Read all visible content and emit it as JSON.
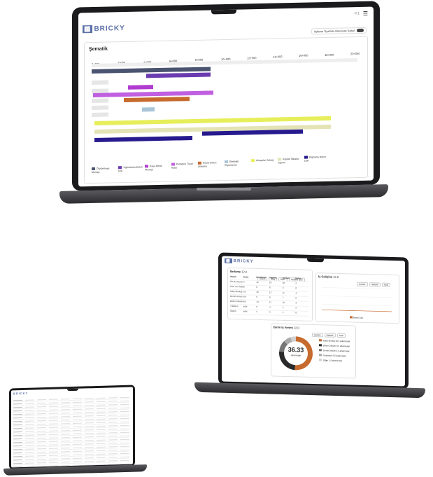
{
  "laptop_large": {
    "header": {
      "logo_text": "BRICKY",
      "page_indicator": "P1",
      "toggle_label": "Aylama Tiyatrolu Mevzuatı Kabel"
    },
    "schematic": {
      "title": "Şematik",
      "ticks": [
        "0+000",
        "2+000",
        "4+000",
        "6+000",
        "8+000",
        "10+000",
        "12+000",
        "14+000",
        "16+000",
        "18+000",
        "20+000"
      ],
      "legend": [
        {
          "label": "Ölçülemeye Montajı",
          "color": "#4a5470"
        },
        {
          "label": "Yığmalama Beton Dök",
          "color": "#6b3bb0"
        },
        {
          "label": "Kaya Beton Montajı",
          "color": "#b03bd0"
        },
        {
          "label": "Prefabrik Tünel Kalıp",
          "color": "#c060e0"
        },
        {
          "label": "Kesici Beton Dökümü",
          "color": "#c76a2e"
        },
        {
          "label": "Elektrikli Ölçümleme",
          "color": "#a9c6d8"
        },
        {
          "label": "Ahşaplar Sahaşı",
          "color": "#e6ee5a"
        },
        {
          "label": "Asfalte Tabaka Yapımı",
          "color": "#e3e3b6"
        },
        {
          "label": "Kaplama Beton Dök",
          "color": "#261a8e"
        }
      ]
    }
  },
  "laptop_mid": {
    "header": {
      "logo_text": "BRICKY"
    },
    "table_card": {
      "title": "İlerleme",
      "date": "12.0",
      "chips": [
        "Seçim",
        "Bitiş",
        "Birim",
        "Haftalık Gün"
      ],
      "columns": [
        "İmalat",
        "Birim",
        "Planlanan",
        "Yapılan",
        "Gerçek",
        "Kalan"
      ],
      "rows": [
        [
          "Filt.tas Kazısı",
          "m",
          "12",
          "10",
          "10",
          "2"
        ],
        [
          "Kazı Yeri Tabaka",
          "m",
          "8",
          "8",
          "9",
          "0"
        ],
        [
          "Kalıp Montajı",
          "m2",
          "16",
          "12",
          "11",
          "4"
        ],
        [
          "Demir Donatı",
          "ton",
          "9",
          "9",
          "7",
          "0"
        ],
        [
          "Beton Dökümü",
          "m3",
          "14",
          "11",
          "10",
          "3"
        ],
        [
          "Yükleme",
          "adet",
          "6",
          "4",
          "5",
          "2"
        ],
        [
          "Ölçüm",
          "adet",
          "5",
          "5",
          "4",
          "0"
        ]
      ]
    },
    "line_card": {
      "title": "İş Gelişimi",
      "date": "12.0",
      "chips": [
        "Günlük",
        "Haftalık",
        "Aylık"
      ],
      "legend_label": "Beton Dök"
    },
    "donut_card": {
      "title": "Birim İş Verimi",
      "date": "12.0",
      "chips": [
        "Günlük",
        "Haftalık",
        "Aylık"
      ],
      "value": "36.33",
      "unit": "adam/saat",
      "legend": [
        {
          "label": "Kalıp Montaj 18.5 adam/saat",
          "color": "#c76a2e"
        },
        {
          "label": "Beton Döküm 9.2 adam/saat",
          "color": "#2a2a2a"
        },
        {
          "label": "Demir Donatı 4.1 adam/saat",
          "color": "#777777"
        },
        {
          "label": "İzolasyon 2.6 adam/saat",
          "color": "#aaaaaa"
        },
        {
          "label": "Diğer 1.9 adam/saat",
          "color": "#d0d0d0"
        }
      ],
      "chart_segments": [
        {
          "name": "Kalıp Montaj",
          "value": 18.5,
          "color": "#c76a2e"
        },
        {
          "name": "Beton Döküm",
          "value": 9.2,
          "color": "#2a2a2a"
        },
        {
          "name": "Demir Donatı",
          "value": 4.1,
          "color": "#777777"
        },
        {
          "name": "İzolasyon",
          "value": 2.6,
          "color": "#aaaaaa"
        },
        {
          "name": "Diğer",
          "value": 1.9,
          "color": "#d0d0d0"
        }
      ]
    }
  },
  "laptop_small": {
    "header": {
      "logo_text": "BRICKY"
    }
  }
}
